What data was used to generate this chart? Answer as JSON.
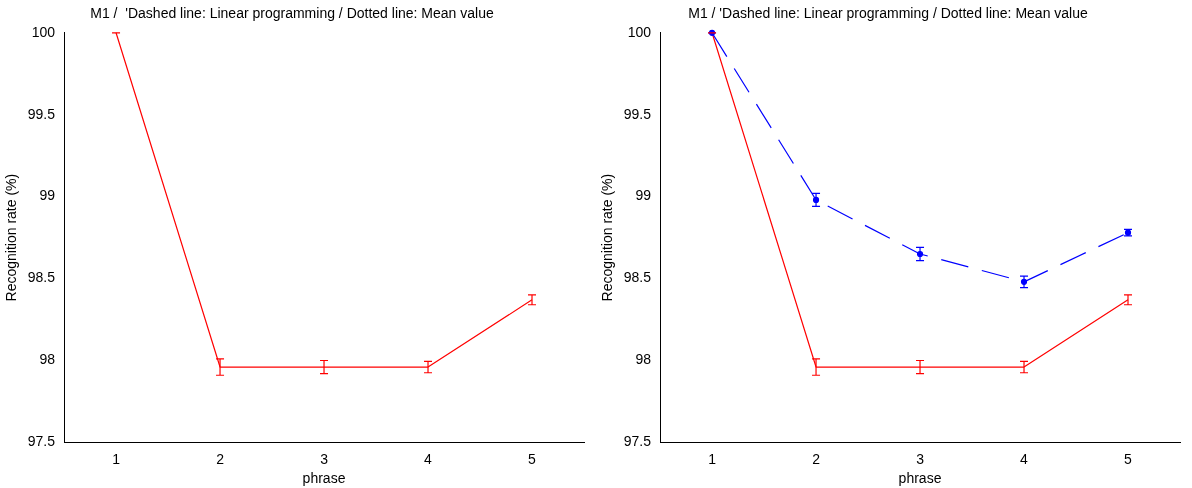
{
  "chart_data": [
    {
      "type": "line",
      "title": "M1 /  'Dashed line: Linear programming / Dotted line: Mean value",
      "xlabel": "phrase",
      "ylabel": "Recognition rate (%)",
      "x": [
        1,
        2,
        3,
        4,
        5
      ],
      "xlim": [
        0.5,
        5.5
      ],
      "xticks": [
        1,
        2,
        3,
        4,
        5
      ],
      "ylim": [
        97.5,
        100
      ],
      "yticks": [
        97.5,
        98,
        98.5,
        99,
        99.5,
        100
      ],
      "grid": false,
      "legend": false,
      "line_style": "solid",
      "series": [
        {
          "color": "#ff0000",
          "values": [
            100,
            97.96,
            97.96,
            97.96,
            98.37
          ],
          "errors": [
            0,
            0.05,
            0.04,
            0.035,
            0.03
          ]
        }
      ]
    },
    {
      "type": "line",
      "title": "M1 / 'Dashed line: Linear programming / Dotted line: Mean value",
      "xlabel": "phrase",
      "ylabel": "Recognition rate (%)",
      "x": [
        1,
        2,
        3,
        4,
        5
      ],
      "xlim": [
        0.5,
        5.5
      ],
      "xticks": [
        1,
        2,
        3,
        4,
        5
      ],
      "ylim": [
        97.5,
        100
      ],
      "yticks": [
        97.5,
        98,
        98.5,
        99,
        99.5,
        100
      ],
      "grid": false,
      "legend": false,
      "series": [
        {
          "color": "#0000ff",
          "line_style": "dashed",
          "marker": "circle",
          "values": [
            100,
            98.98,
            98.65,
            98.48,
            98.78
          ],
          "errors": [
            0,
            0.04,
            0.04,
            0.035,
            0.02
          ]
        },
        {
          "color": "#ff0000",
          "line_style": "solid",
          "values": [
            100,
            97.96,
            97.96,
            97.96,
            98.37
          ],
          "errors": [
            0,
            0.05,
            0.04,
            0.035,
            0.03
          ]
        }
      ]
    }
  ]
}
